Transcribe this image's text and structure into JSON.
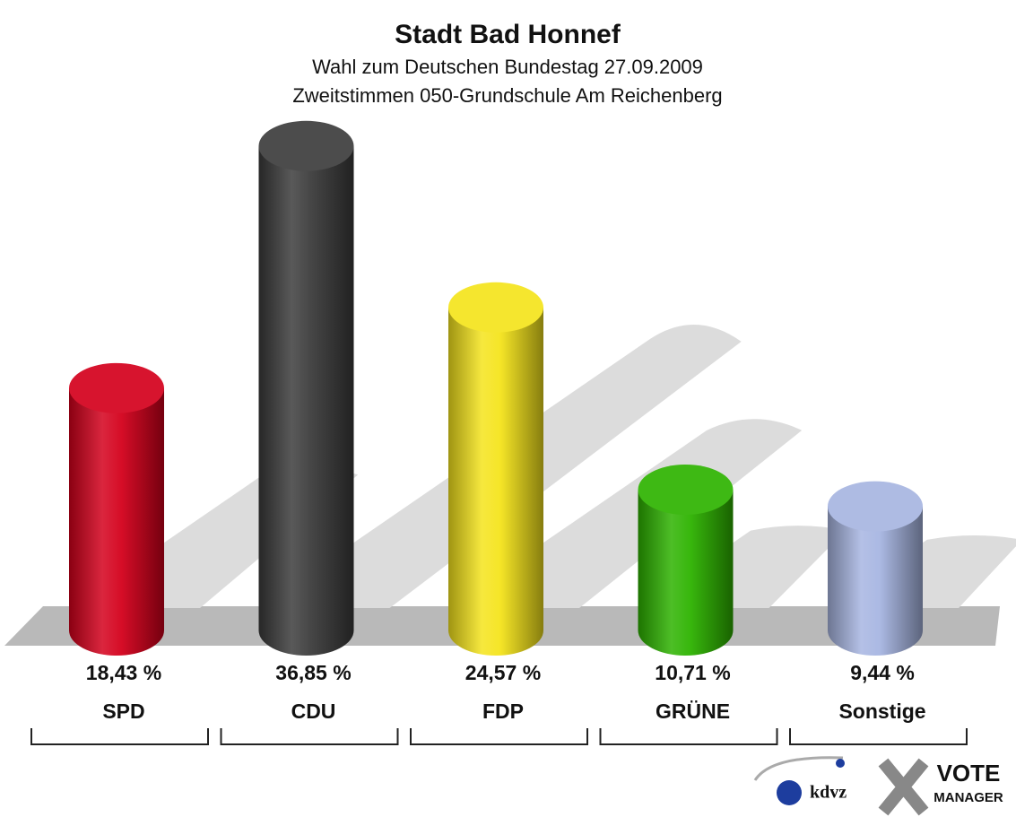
{
  "chart_data": {
    "type": "bar",
    "title": "Stadt Bad Honnef",
    "subtitle": [
      "Wahl zum Deutschen Bundestag 27.09.2009",
      "Zweitstimmen 050-Grundschule Am Reichenberg"
    ],
    "categories": [
      "SPD",
      "CDU",
      "FDP",
      "GRÜNE",
      "Sonstige"
    ],
    "values": [
      18.43,
      36.85,
      24.57,
      10.71,
      9.44
    ],
    "value_labels": [
      "18,43 %",
      "36,85 %",
      "24,57 %",
      "10,71 %",
      "9,44 %"
    ],
    "colors": [
      "#d4001c",
      "#3c3c3c",
      "#f4e41c",
      "#2db300",
      "#a7b5e1"
    ]
  },
  "logo": {
    "brand": "kdvz",
    "product": [
      "VOTE",
      "MANAGER"
    ]
  }
}
